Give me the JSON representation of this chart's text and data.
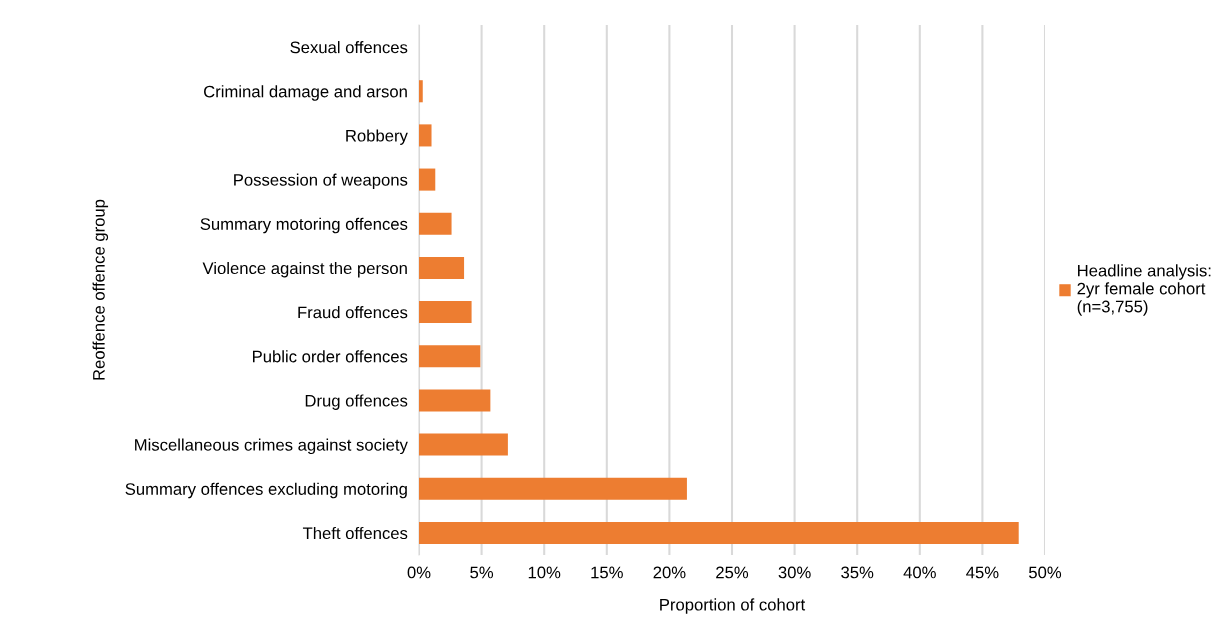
{
  "chart_data": {
    "type": "bar",
    "orientation": "horizontal",
    "categories": [
      "Sexual offences",
      "Criminal damage and arson",
      "Robbery",
      "Possession of weapons",
      "Summary motoring offences",
      "Violence against the person",
      "Fraud offences",
      "Public order offences",
      "Drug offences",
      "Miscellaneous crimes against society",
      "Summary offences excluding motoring",
      "Theft offences"
    ],
    "series": [
      {
        "name": "Headline analysis:\n2yr female cohort\n(n=3,755)",
        "color": "#ed7d31",
        "values": [
          0,
          0.3,
          1.0,
          1.3,
          2.6,
          3.6,
          4.2,
          4.9,
          5.7,
          7.1,
          21.4,
          47.9
        ]
      }
    ],
    "xlabel": "Proportion of cohort",
    "ylabel": "Reoffence offence group",
    "xlim": [
      0,
      50
    ],
    "xticks": [
      {
        "value": 0,
        "label": "0%"
      },
      {
        "value": 5,
        "label": "5%"
      },
      {
        "value": 10,
        "label": "10%"
      },
      {
        "value": 15,
        "label": "15%"
      },
      {
        "value": 20,
        "label": "20%"
      },
      {
        "value": 25,
        "label": "25%"
      },
      {
        "value": 30,
        "label": "30%"
      },
      {
        "value": 35,
        "label": "35%"
      },
      {
        "value": 40,
        "label": "40%"
      },
      {
        "value": 45,
        "label": "45%"
      },
      {
        "value": 50,
        "label": "50%"
      }
    ],
    "grid": "x",
    "legend": "right"
  }
}
